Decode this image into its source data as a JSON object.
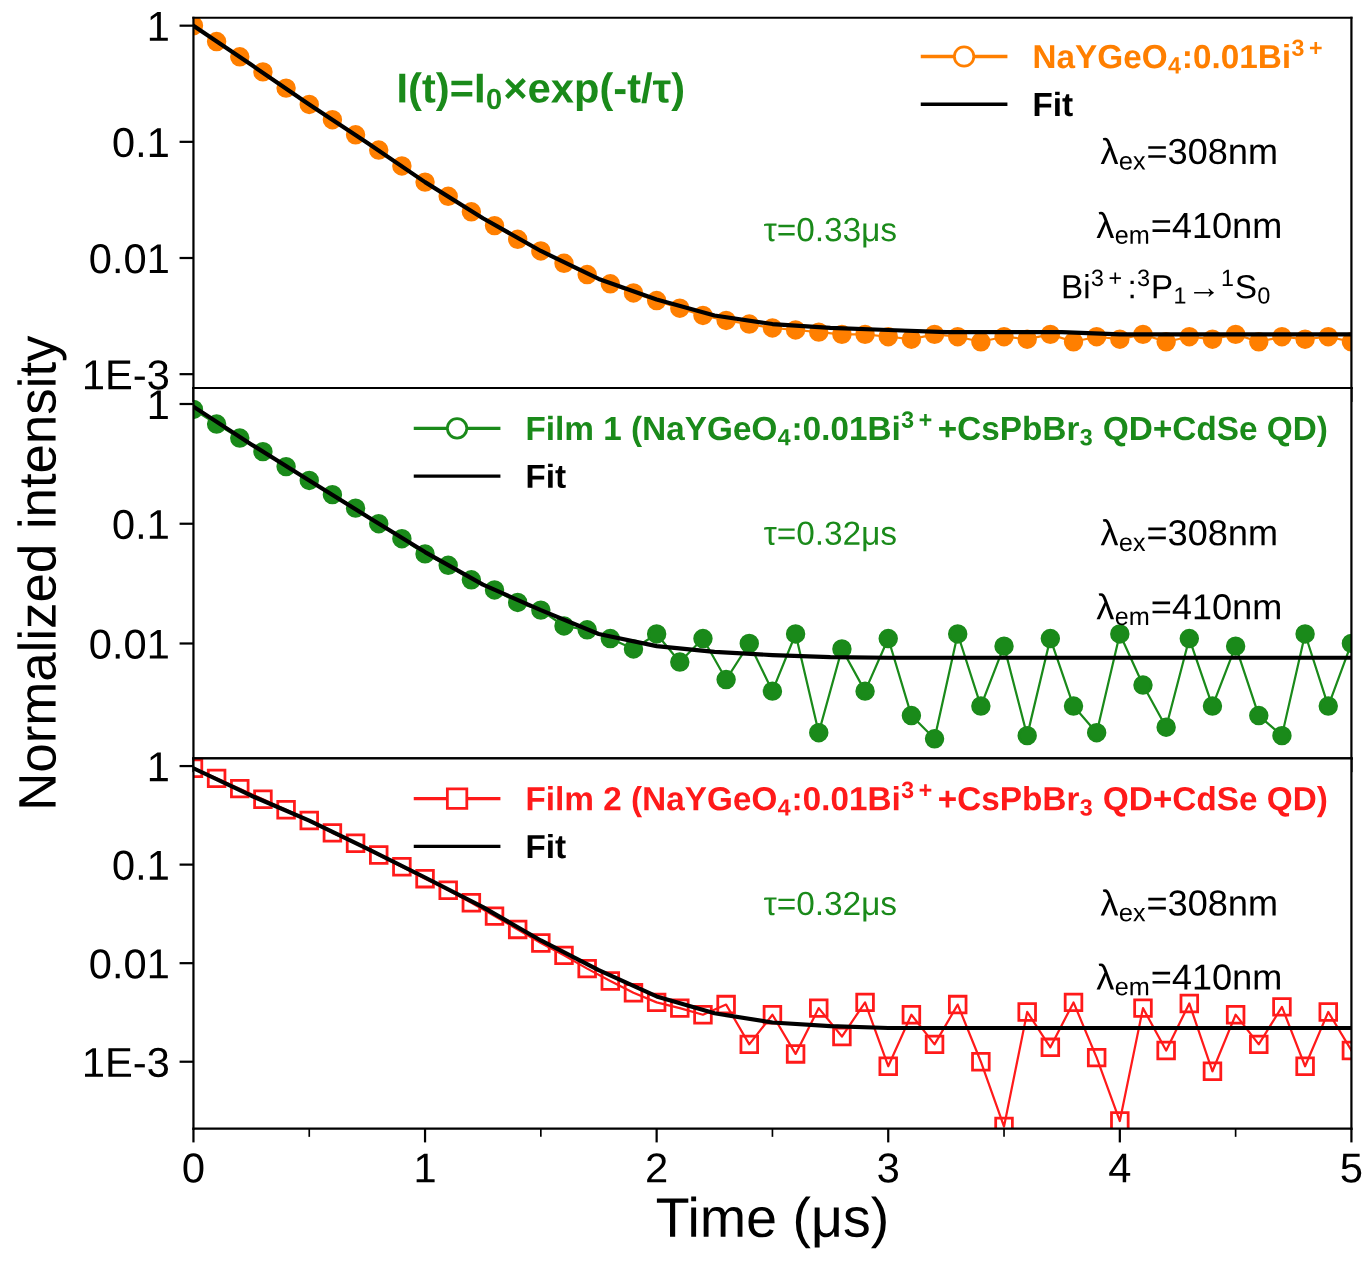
{
  "chart_data": [
    {
      "type": "line",
      "xlim": [
        0,
        5
      ],
      "ylim": [
        0.00076,
        1.17
      ],
      "log": "y",
      "tick_labels": "y",
      "legend": "top right",
      "grid": false,
      "xticks": [
        0,
        {
          "value": 0.5,
          "label": null
        },
        1,
        {
          "value": 1.5,
          "label": null
        },
        2,
        {
          "value": 2.5,
          "label": null
        },
        3,
        {
          "value": 3.5,
          "label": null
        },
        4,
        {
          "value": 4.5,
          "label": null
        },
        5
      ],
      "yticks": [
        1,
        0.1,
        0.01,
        {
          "value": 0.001,
          "label": "1E-3"
        }
      ],
      "x": [
        0,
        0.1,
        0.2,
        0.3,
        0.4,
        0.5,
        0.6,
        0.7,
        0.8,
        0.9,
        1.0,
        1.1,
        1.2,
        1.3,
        1.4,
        1.5,
        1.6,
        1.7,
        1.8,
        1.9,
        2.0,
        2.1,
        2.2,
        2.3,
        2.4,
        2.5,
        2.6,
        2.7,
        2.8,
        2.9,
        3.0,
        3.1,
        3.2,
        3.3,
        3.4,
        3.5,
        3.6,
        3.7,
        3.8,
        3.9,
        4.0,
        4.1,
        4.2,
        4.3,
        4.4,
        4.5,
        4.6,
        4.7,
        4.8,
        4.9,
        5.0
      ],
      "series": [
        {
          "name": "NaYGeO$_{4}$:0.01Bi$^{3+}$",
          "color": "#ff7f00",
          "marker": "circle",
          "values": [
            1.0,
            0.73,
            0.54,
            0.4,
            0.29,
            0.21,
            0.155,
            0.115,
            0.085,
            0.062,
            0.045,
            0.034,
            0.025,
            0.019,
            0.0145,
            0.0115,
            0.009,
            0.0072,
            0.006,
            0.005,
            0.0043,
            0.0037,
            0.0032,
            0.0029,
            0.0027,
            0.0025,
            0.0024,
            0.0023,
            0.0022,
            0.0022,
            0.0021,
            0.002,
            0.0022,
            0.0021,
            0.0019,
            0.0021,
            0.002,
            0.0022,
            0.0019,
            0.0021,
            0.002,
            0.0022,
            0.0019,
            0.0021,
            0.002,
            0.0022,
            0.0019,
            0.0021,
            0.002,
            0.0021,
            0.0019
          ]
        },
        {
          "name": "Fit",
          "color": "#000000",
          "marker": "none",
          "x": [
            0,
            0.25,
            0.5,
            0.75,
            1,
            1.25,
            1.5,
            1.75,
            2,
            2.25,
            2.5,
            2.75,
            3,
            3.25,
            3.5,
            3.75,
            4,
            4.25,
            4.5,
            4.75,
            5
          ],
          "values": [
            1.0,
            0.46,
            0.21,
            0.098,
            0.045,
            0.022,
            0.0115,
            0.0066,
            0.0044,
            0.0032,
            0.0027,
            0.0025,
            0.0024,
            0.0023,
            0.0023,
            0.0023,
            0.0022,
            0.0022,
            0.0022,
            0.0022,
            0.0022
          ]
        }
      ],
      "annotations": [
        "I(t)=I$_{0}$×exp(-t/τ)",
        "τ=0.33μs",
        "λ$_{ex}$=308nm",
        "λ$_{em}$=410nm",
        "Bi$^{3+}$:$^{3}$P$_{1}$→$^{1}$S$_{0}$"
      ]
    },
    {
      "type": "line",
      "xlim": [
        0,
        5
      ],
      "ylim": [
        0.0011,
        1.36
      ],
      "log": "y",
      "tick_labels": "y",
      "legend": "top right",
      "grid": false,
      "ylabel": "Normalized intensity",
      "xticks": [
        0,
        {
          "value": 0.5,
          "label": null
        },
        1,
        {
          "value": 1.5,
          "label": null
        },
        2,
        {
          "value": 2.5,
          "label": null
        },
        3,
        {
          "value": 3.5,
          "label": null
        },
        4,
        {
          "value": 4.5,
          "label": null
        },
        5
      ],
      "yticks": [
        1,
        0.1,
        0.01
      ],
      "x": [
        0,
        0.1,
        0.2,
        0.3,
        0.4,
        0.5,
        0.6,
        0.7,
        0.8,
        0.9,
        1.0,
        1.1,
        1.2,
        1.3,
        1.4,
        1.5,
        1.6,
        1.7,
        1.8,
        1.9,
        2.0,
        2.1,
        2.2,
        2.3,
        2.4,
        2.5,
        2.6,
        2.7,
        2.8,
        2.9,
        3.0,
        3.1,
        3.2,
        3.3,
        3.4,
        3.5,
        3.6,
        3.7,
        3.8,
        3.9,
        4.0,
        4.1,
        4.2,
        4.3,
        4.4,
        4.5,
        4.6,
        4.7,
        4.8,
        4.9,
        5.0
      ],
      "series": [
        {
          "name": "Film 1 (NaYGeO$_{4}$:0.01Bi$^{3+}$+CsPbBr$_{3}$ QD+CdSe QD)",
          "color": "#1a8a1a",
          "marker": "circle",
          "values": [
            0.9,
            0.68,
            0.52,
            0.4,
            0.3,
            0.23,
            0.175,
            0.135,
            0.1,
            0.075,
            0.056,
            0.045,
            0.034,
            0.028,
            0.022,
            0.019,
            0.014,
            0.013,
            0.011,
            0.009,
            0.012,
            0.007,
            0.011,
            0.005,
            0.01,
            0.004,
            0.012,
            0.0018,
            0.009,
            0.004,
            0.011,
            0.0025,
            0.0016,
            0.012,
            0.003,
            0.0095,
            0.0017,
            0.011,
            0.003,
            0.0018,
            0.012,
            0.0045,
            0.002,
            0.011,
            0.003,
            0.0095,
            0.0025,
            0.0017,
            0.012,
            0.003,
            0.01
          ]
        },
        {
          "name": "Fit",
          "color": "#000000",
          "marker": "none",
          "x": [
            0,
            0.25,
            0.5,
            0.75,
            1,
            1.25,
            1.5,
            1.75,
            2,
            2.25,
            2.5,
            2.75,
            3,
            3.25,
            3.5,
            3.75,
            4,
            4.25,
            4.5,
            4.75,
            5
          ],
          "values": [
            0.95,
            0.46,
            0.23,
            0.115,
            0.058,
            0.031,
            0.019,
            0.012,
            0.0095,
            0.0085,
            0.008,
            0.0077,
            0.0076,
            0.0076,
            0.0076,
            0.0076,
            0.0076,
            0.0076,
            0.0076,
            0.0076,
            0.0076
          ]
        }
      ],
      "annotations": [
        "τ=0.32μs",
        "λ$_{ex}$=308nm",
        "λ$_{em}$=410nm"
      ]
    },
    {
      "type": "line",
      "xlim": [
        0,
        5
      ],
      "ylim": [
        0.00021,
        1.2
      ],
      "log": "y",
      "legend": "top right",
      "grid": false,
      "xlabel": "Time (μs)",
      "xticks": [
        0,
        {
          "value": 0.5,
          "label": null
        },
        1,
        {
          "value": 1.5,
          "label": null
        },
        2,
        {
          "value": 2.5,
          "label": null
        },
        3,
        {
          "value": 3.5,
          "label": null
        },
        4,
        {
          "value": 4.5,
          "label": null
        },
        5
      ],
      "yticks": [
        1,
        0.1,
        0.01,
        {
          "value": 0.001,
          "label": "1E-3"
        }
      ],
      "x": [
        0,
        0.1,
        0.2,
        0.3,
        0.4,
        0.5,
        0.6,
        0.7,
        0.8,
        0.9,
        1.0,
        1.1,
        1.2,
        1.3,
        1.4,
        1.5,
        1.6,
        1.7,
        1.8,
        1.9,
        2.0,
        2.1,
        2.2,
        2.3,
        2.4,
        2.5,
        2.6,
        2.7,
        2.8,
        2.9,
        3.0,
        3.1,
        3.2,
        3.3,
        3.4,
        3.5,
        3.6,
        3.7,
        3.8,
        3.9,
        4.0,
        4.1,
        4.2,
        4.3,
        4.4,
        4.5,
        4.6,
        4.7,
        4.8,
        4.9,
        5.0
      ],
      "series": [
        {
          "name": "Film 2 (NaYGeO$_{4}$:0.01Bi$^{3+}$+CsPbBr$_{3}$ QD+CdSe QD)",
          "color": "#ff1a1a",
          "marker": "square",
          "values": [
            0.95,
            0.75,
            0.59,
            0.46,
            0.36,
            0.28,
            0.21,
            0.165,
            0.125,
            0.095,
            0.072,
            0.055,
            0.041,
            0.03,
            0.022,
            0.016,
            0.012,
            0.0088,
            0.0066,
            0.005,
            0.004,
            0.0035,
            0.003,
            0.0038,
            0.0015,
            0.003,
            0.0012,
            0.0035,
            0.0018,
            0.004,
            0.0009,
            0.003,
            0.0015,
            0.0038,
            0.001,
            0.00022,
            0.0032,
            0.0014,
            0.004,
            0.0011,
            0.00025,
            0.0035,
            0.0013,
            0.0039,
            0.0008,
            0.003,
            0.0015,
            0.0036,
            0.0009,
            0.0032,
            0.0013
          ]
        },
        {
          "name": "Fit",
          "color": "#000000",
          "marker": "none",
          "x": [
            0,
            0.25,
            0.5,
            0.75,
            1,
            1.25,
            1.5,
            1.75,
            2,
            2.25,
            2.5,
            2.75,
            3,
            3.25,
            3.5,
            3.75,
            4,
            4.25,
            4.5,
            4.75,
            5
          ],
          "values": [
            0.95,
            0.5,
            0.28,
            0.145,
            0.074,
            0.037,
            0.017,
            0.0085,
            0.0046,
            0.0031,
            0.0025,
            0.0023,
            0.0022,
            0.0022,
            0.0022,
            0.0022,
            0.0022,
            0.0022,
            0.0022,
            0.0022,
            0.0022
          ]
        }
      ],
      "annotations": [
        "τ=0.32μs",
        "λ$_{ex}$=308nm",
        "λ$_{em}$=410nm"
      ]
    }
  ]
}
